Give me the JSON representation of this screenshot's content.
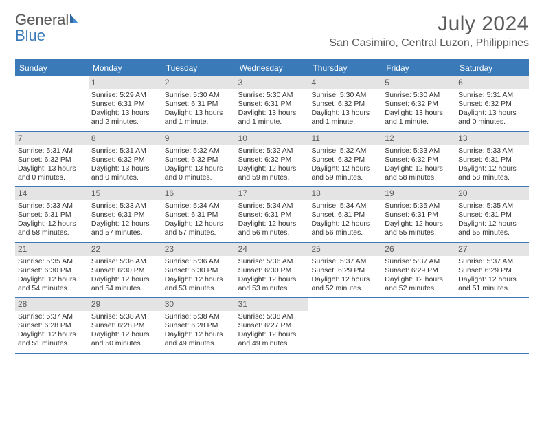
{
  "logo": {
    "word1": "General",
    "word2": "Blue"
  },
  "title": "July 2024",
  "location": "San Casimiro, Central Luzon, Philippines",
  "colors": {
    "accent": "#3a7ab8",
    "daynum_bg": "#e4e4e4",
    "text": "#343434",
    "header_text": "#5a5a5a",
    "white": "#ffffff"
  },
  "day_names": [
    "Sunday",
    "Monday",
    "Tuesday",
    "Wednesday",
    "Thursday",
    "Friday",
    "Saturday"
  ],
  "weeks": [
    [
      {
        "day": "",
        "sunrise": "",
        "sunset": "",
        "daylight": ""
      },
      {
        "day": "1",
        "sunrise": "Sunrise: 5:29 AM",
        "sunset": "Sunset: 6:31 PM",
        "daylight": "Daylight: 13 hours and 2 minutes."
      },
      {
        "day": "2",
        "sunrise": "Sunrise: 5:30 AM",
        "sunset": "Sunset: 6:31 PM",
        "daylight": "Daylight: 13 hours and 1 minute."
      },
      {
        "day": "3",
        "sunrise": "Sunrise: 5:30 AM",
        "sunset": "Sunset: 6:31 PM",
        "daylight": "Daylight: 13 hours and 1 minute."
      },
      {
        "day": "4",
        "sunrise": "Sunrise: 5:30 AM",
        "sunset": "Sunset: 6:32 PM",
        "daylight": "Daylight: 13 hours and 1 minute."
      },
      {
        "day": "5",
        "sunrise": "Sunrise: 5:30 AM",
        "sunset": "Sunset: 6:32 PM",
        "daylight": "Daylight: 13 hours and 1 minute."
      },
      {
        "day": "6",
        "sunrise": "Sunrise: 5:31 AM",
        "sunset": "Sunset: 6:32 PM",
        "daylight": "Daylight: 13 hours and 0 minutes."
      }
    ],
    [
      {
        "day": "7",
        "sunrise": "Sunrise: 5:31 AM",
        "sunset": "Sunset: 6:32 PM",
        "daylight": "Daylight: 13 hours and 0 minutes."
      },
      {
        "day": "8",
        "sunrise": "Sunrise: 5:31 AM",
        "sunset": "Sunset: 6:32 PM",
        "daylight": "Daylight: 13 hours and 0 minutes."
      },
      {
        "day": "9",
        "sunrise": "Sunrise: 5:32 AM",
        "sunset": "Sunset: 6:32 PM",
        "daylight": "Daylight: 13 hours and 0 minutes."
      },
      {
        "day": "10",
        "sunrise": "Sunrise: 5:32 AM",
        "sunset": "Sunset: 6:32 PM",
        "daylight": "Daylight: 12 hours and 59 minutes."
      },
      {
        "day": "11",
        "sunrise": "Sunrise: 5:32 AM",
        "sunset": "Sunset: 6:32 PM",
        "daylight": "Daylight: 12 hours and 59 minutes."
      },
      {
        "day": "12",
        "sunrise": "Sunrise: 5:33 AM",
        "sunset": "Sunset: 6:32 PM",
        "daylight": "Daylight: 12 hours and 58 minutes."
      },
      {
        "day": "13",
        "sunrise": "Sunrise: 5:33 AM",
        "sunset": "Sunset: 6:31 PM",
        "daylight": "Daylight: 12 hours and 58 minutes."
      }
    ],
    [
      {
        "day": "14",
        "sunrise": "Sunrise: 5:33 AM",
        "sunset": "Sunset: 6:31 PM",
        "daylight": "Daylight: 12 hours and 58 minutes."
      },
      {
        "day": "15",
        "sunrise": "Sunrise: 5:33 AM",
        "sunset": "Sunset: 6:31 PM",
        "daylight": "Daylight: 12 hours and 57 minutes."
      },
      {
        "day": "16",
        "sunrise": "Sunrise: 5:34 AM",
        "sunset": "Sunset: 6:31 PM",
        "daylight": "Daylight: 12 hours and 57 minutes."
      },
      {
        "day": "17",
        "sunrise": "Sunrise: 5:34 AM",
        "sunset": "Sunset: 6:31 PM",
        "daylight": "Daylight: 12 hours and 56 minutes."
      },
      {
        "day": "18",
        "sunrise": "Sunrise: 5:34 AM",
        "sunset": "Sunset: 6:31 PM",
        "daylight": "Daylight: 12 hours and 56 minutes."
      },
      {
        "day": "19",
        "sunrise": "Sunrise: 5:35 AM",
        "sunset": "Sunset: 6:31 PM",
        "daylight": "Daylight: 12 hours and 55 minutes."
      },
      {
        "day": "20",
        "sunrise": "Sunrise: 5:35 AM",
        "sunset": "Sunset: 6:31 PM",
        "daylight": "Daylight: 12 hours and 55 minutes."
      }
    ],
    [
      {
        "day": "21",
        "sunrise": "Sunrise: 5:35 AM",
        "sunset": "Sunset: 6:30 PM",
        "daylight": "Daylight: 12 hours and 54 minutes."
      },
      {
        "day": "22",
        "sunrise": "Sunrise: 5:36 AM",
        "sunset": "Sunset: 6:30 PM",
        "daylight": "Daylight: 12 hours and 54 minutes."
      },
      {
        "day": "23",
        "sunrise": "Sunrise: 5:36 AM",
        "sunset": "Sunset: 6:30 PM",
        "daylight": "Daylight: 12 hours and 53 minutes."
      },
      {
        "day": "24",
        "sunrise": "Sunrise: 5:36 AM",
        "sunset": "Sunset: 6:30 PM",
        "daylight": "Daylight: 12 hours and 53 minutes."
      },
      {
        "day": "25",
        "sunrise": "Sunrise: 5:37 AM",
        "sunset": "Sunset: 6:29 PM",
        "daylight": "Daylight: 12 hours and 52 minutes."
      },
      {
        "day": "26",
        "sunrise": "Sunrise: 5:37 AM",
        "sunset": "Sunset: 6:29 PM",
        "daylight": "Daylight: 12 hours and 52 minutes."
      },
      {
        "day": "27",
        "sunrise": "Sunrise: 5:37 AM",
        "sunset": "Sunset: 6:29 PM",
        "daylight": "Daylight: 12 hours and 51 minutes."
      }
    ],
    [
      {
        "day": "28",
        "sunrise": "Sunrise: 5:37 AM",
        "sunset": "Sunset: 6:28 PM",
        "daylight": "Daylight: 12 hours and 51 minutes."
      },
      {
        "day": "29",
        "sunrise": "Sunrise: 5:38 AM",
        "sunset": "Sunset: 6:28 PM",
        "daylight": "Daylight: 12 hours and 50 minutes."
      },
      {
        "day": "30",
        "sunrise": "Sunrise: 5:38 AM",
        "sunset": "Sunset: 6:28 PM",
        "daylight": "Daylight: 12 hours and 49 minutes."
      },
      {
        "day": "31",
        "sunrise": "Sunrise: 5:38 AM",
        "sunset": "Sunset: 6:27 PM",
        "daylight": "Daylight: 12 hours and 49 minutes."
      },
      {
        "day": "",
        "sunrise": "",
        "sunset": "",
        "daylight": ""
      },
      {
        "day": "",
        "sunrise": "",
        "sunset": "",
        "daylight": ""
      },
      {
        "day": "",
        "sunrise": "",
        "sunset": "",
        "daylight": ""
      }
    ]
  ]
}
